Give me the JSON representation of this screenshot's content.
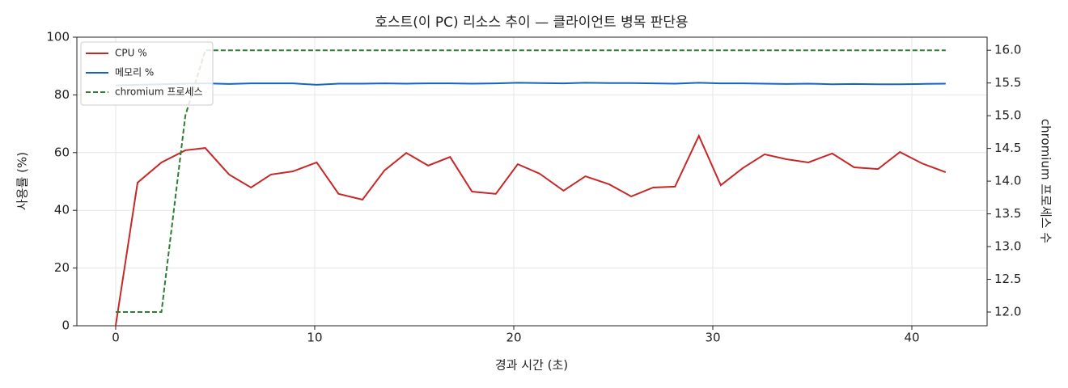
{
  "chart_data": {
    "type": "line",
    "title": "호스트(이 PC) 리소스 추이 — 클라이언트 병목 판단용",
    "xlabel": "경과 시간 (초)",
    "ylabel": "사용률 (%)",
    "y2label": "chromium 프로세스 수",
    "x": [
      0,
      1.1,
      2.3,
      3.5,
      4.5,
      5.7,
      6.8,
      7.8,
      8.9,
      10.1,
      11.2,
      12.4,
      13.5,
      14.6,
      15.7,
      16.8,
      17.9,
      19.1,
      20.2,
      21.3,
      22.5,
      23.6,
      24.8,
      25.9,
      27.0,
      28.1,
      29.3,
      30.4,
      31.5,
      32.6,
      33.7,
      34.8,
      36.0,
      37.1,
      38.3,
      39.4,
      40.5,
      41.7
    ],
    "series": [
      {
        "name": "CPU %",
        "color": "#c62828",
        "dash": false,
        "values": [
          0,
          49.6,
          56.6,
          60.8,
          61.6,
          52.4,
          47.9,
          52.4,
          53.5,
          56.6,
          45.7,
          43.7,
          53.8,
          59.9,
          55.5,
          58.5,
          46.5,
          45.7,
          56.0,
          52.7,
          46.8,
          51.8,
          49.0,
          44.8,
          47.9,
          48.2,
          65.8,
          48.7,
          54.6,
          59.4,
          57.7,
          56.6,
          59.7,
          54.9,
          54.3,
          60.2,
          56.3,
          53.2
        ]
      },
      {
        "name": "메모리 %",
        "color": "#1565c0",
        "dash": false,
        "values": [
          83.3,
          83.5,
          83.7,
          83.9,
          84.0,
          83.8,
          84.0,
          84.0,
          84.0,
          83.5,
          83.9,
          83.9,
          84.0,
          83.9,
          84.0,
          84.0,
          83.9,
          84.0,
          84.2,
          84.1,
          84.0,
          84.2,
          84.1,
          84.1,
          84.0,
          83.9,
          84.2,
          84.0,
          84.0,
          83.9,
          83.8,
          83.9,
          83.7,
          83.8,
          83.7,
          83.7,
          83.8,
          83.9
        ]
      },
      {
        "name": "chromium 프로세스",
        "color": "#2e7d32",
        "dash": true,
        "axis": "y2",
        "values": [
          12,
          12,
          12,
          15,
          16,
          16,
          16,
          16,
          16,
          16,
          16,
          16,
          16,
          16,
          16,
          16,
          16,
          16,
          16,
          16,
          16,
          16,
          16,
          16,
          16,
          16,
          16,
          16,
          16,
          16,
          16,
          16,
          16,
          16,
          16,
          16,
          16,
          16
        ]
      }
    ],
    "xlim": [
      -1.95,
      43.78
    ],
    "xticks": [
      0,
      10,
      20,
      30,
      40
    ],
    "ylim": [
      0,
      100
    ],
    "yticks": [
      0,
      20,
      40,
      60,
      80,
      100
    ],
    "y2lim": [
      11.79,
      16.2
    ],
    "y2ticks": [
      {
        "value": 12,
        "label": "12.0"
      },
      12.5,
      {
        "value": 13,
        "label": "13.0"
      },
      13.5,
      {
        "value": 14,
        "label": "14.0"
      },
      14.5,
      {
        "value": 15,
        "label": "15.0"
      },
      15.5,
      {
        "value": 16,
        "label": "16.0"
      }
    ],
    "grid": true,
    "legend": "upper left"
  }
}
